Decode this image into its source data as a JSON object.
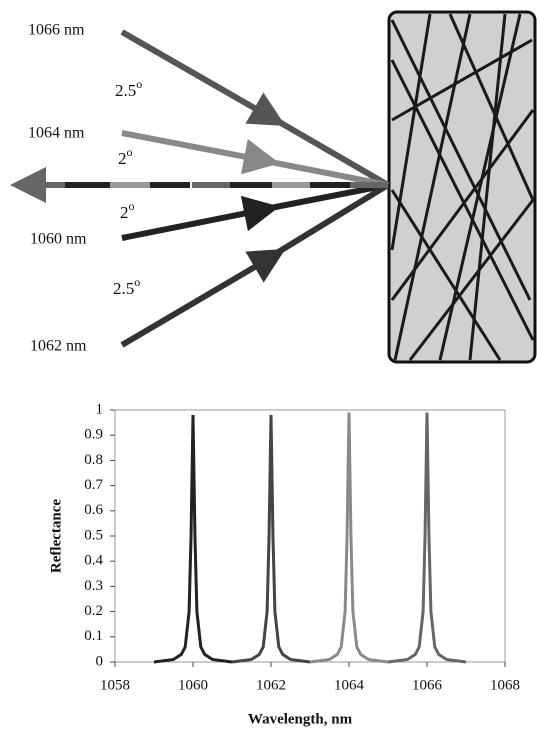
{
  "diagram": {
    "labels": [
      "1066 nm",
      "1064 nm",
      "1060 nm",
      "1062 nm"
    ],
    "angles": [
      {
        "value": "2.5",
        "sup": "o"
      },
      {
        "value": "2",
        "sup": "o"
      },
      {
        "value": "2",
        "sup": "o"
      },
      {
        "value": "2.5",
        "sup": "o"
      }
    ]
  },
  "chart_data": {
    "type": "line",
    "xlabel": "Wavelength, nm",
    "ylabel": "Reflectance",
    "xlim": [
      1058,
      1068
    ],
    "xticks": [
      1058,
      1060,
      1062,
      1064,
      1066,
      1068
    ],
    "ylim": [
      0,
      1
    ],
    "yticks": [
      0,
      0.1,
      0.2,
      0.3,
      0.4,
      0.5,
      0.6,
      0.7,
      0.8,
      0.9,
      1
    ],
    "series": [
      {
        "name": "1060 nm",
        "color": "#222222",
        "x": [
          1059,
          1059.5,
          1059.7,
          1059.8,
          1059.9,
          1059.95,
          1060,
          1060.05,
          1060.1,
          1060.2,
          1060.3,
          1060.5,
          1061
        ],
        "values": [
          0,
          0.01,
          0.03,
          0.06,
          0.2,
          0.5,
          0.98,
          0.5,
          0.2,
          0.06,
          0.03,
          0.01,
          0
        ]
      },
      {
        "name": "1062 nm",
        "color": "#444444",
        "x": [
          1061,
          1061.5,
          1061.7,
          1061.8,
          1061.9,
          1061.95,
          1062,
          1062.05,
          1062.1,
          1062.2,
          1062.3,
          1062.5,
          1063
        ],
        "values": [
          0,
          0.01,
          0.03,
          0.06,
          0.2,
          0.5,
          0.98,
          0.5,
          0.2,
          0.06,
          0.03,
          0.01,
          0
        ]
      },
      {
        "name": "1064 nm",
        "color": "#8a8a8a",
        "x": [
          1063,
          1063.5,
          1063.7,
          1063.8,
          1063.9,
          1063.95,
          1064,
          1064.05,
          1064.1,
          1064.2,
          1064.3,
          1064.5,
          1065
        ],
        "values": [
          0,
          0.01,
          0.03,
          0.06,
          0.2,
          0.5,
          0.99,
          0.5,
          0.2,
          0.06,
          0.03,
          0.01,
          0
        ]
      },
      {
        "name": "1066 nm",
        "color": "#666666",
        "x": [
          1065,
          1065.5,
          1065.7,
          1065.8,
          1065.9,
          1065.95,
          1066,
          1066.05,
          1066.1,
          1066.2,
          1066.3,
          1066.5,
          1067
        ],
        "values": [
          0,
          0.01,
          0.03,
          0.06,
          0.2,
          0.5,
          0.99,
          0.5,
          0.2,
          0.06,
          0.03,
          0.01,
          0
        ]
      }
    ]
  }
}
